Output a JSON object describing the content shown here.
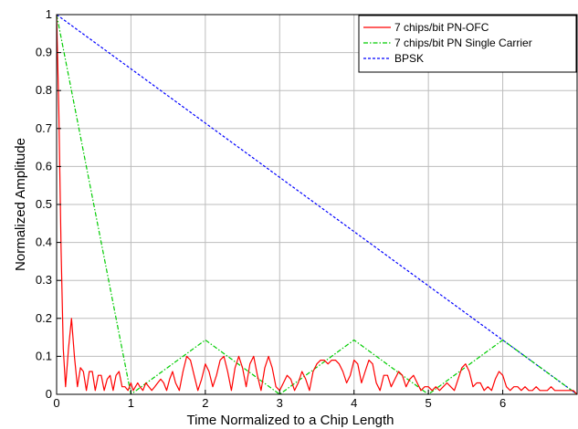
{
  "chart_data": {
    "type": "line",
    "title": "",
    "xlabel": "Time Normalized to a Chip Length",
    "ylabel": "Normalized Amplitude",
    "xlim": [
      0,
      7
    ],
    "ylim": [
      0,
      1
    ],
    "xticks": [
      0,
      1,
      2,
      3,
      4,
      5,
      6
    ],
    "yticks": [
      0,
      0.1,
      0.2,
      0.3,
      0.4,
      0.5,
      0.6,
      0.7,
      0.8,
      0.9,
      1
    ],
    "xtick_labels": [
      "0",
      "1",
      "2",
      "3",
      "4",
      "5",
      "6"
    ],
    "ytick_labels": [
      "0",
      "0.1",
      "0.2",
      "0.3",
      "0.4",
      "0.5",
      "0.6",
      "0.7",
      "0.8",
      "0.9",
      "1"
    ],
    "grid": true,
    "legend_position": "top-right",
    "series": [
      {
        "name": "7 chips/bit PN-OFC",
        "color": "#ff0000",
        "style": "solid",
        "x": [
          0,
          0.03,
          0.06,
          0.09,
          0.12,
          0.16,
          0.2,
          0.24,
          0.28,
          0.32,
          0.36,
          0.4,
          0.44,
          0.48,
          0.52,
          0.56,
          0.6,
          0.64,
          0.68,
          0.72,
          0.76,
          0.8,
          0.84,
          0.88,
          0.92,
          0.96,
          1.0,
          1.03,
          1.06,
          1.09,
          1.12,
          1.16,
          1.2,
          1.24,
          1.28,
          1.32,
          1.36,
          1.4,
          1.44,
          1.48,
          1.52,
          1.56,
          1.6,
          1.65,
          1.7,
          1.75,
          1.8,
          1.85,
          1.9,
          1.95,
          2.0,
          2.05,
          2.1,
          2.15,
          2.2,
          2.25,
          2.3,
          2.35,
          2.4,
          2.45,
          2.5,
          2.55,
          2.6,
          2.65,
          2.7,
          2.75,
          2.8,
          2.85,
          2.9,
          2.95,
          3.0,
          3.05,
          3.1,
          3.15,
          3.2,
          3.25,
          3.3,
          3.35,
          3.4,
          3.45,
          3.5,
          3.55,
          3.6,
          3.65,
          3.7,
          3.75,
          3.8,
          3.85,
          3.9,
          3.95,
          4.0,
          4.05,
          4.1,
          4.15,
          4.2,
          4.25,
          4.3,
          4.35,
          4.4,
          4.45,
          4.5,
          4.55,
          4.6,
          4.65,
          4.7,
          4.75,
          4.8,
          4.85,
          4.9,
          4.95,
          5.0,
          5.05,
          5.1,
          5.15,
          5.2,
          5.25,
          5.3,
          5.35,
          5.4,
          5.45,
          5.5,
          5.55,
          5.6,
          5.65,
          5.7,
          5.75,
          5.8,
          5.85,
          5.9,
          5.95,
          6.0,
          6.05,
          6.1,
          6.15,
          6.2,
          6.25,
          6.3,
          6.35,
          6.4,
          6.45,
          6.5,
          6.55,
          6.6,
          6.65,
          6.7,
          6.75,
          6.8,
          6.85,
          6.9,
          6.95,
          7.0
        ],
        "y": [
          1.0,
          0.75,
          0.38,
          0.12,
          0.02,
          0.12,
          0.2,
          0.1,
          0.02,
          0.07,
          0.06,
          0.01,
          0.06,
          0.06,
          0.01,
          0.05,
          0.05,
          0.01,
          0.04,
          0.05,
          0.01,
          0.05,
          0.06,
          0.02,
          0.02,
          0.01,
          0.03,
          0.01,
          0.02,
          0.03,
          0.02,
          0.01,
          0.03,
          0.02,
          0.01,
          0.02,
          0.03,
          0.04,
          0.03,
          0.01,
          0.04,
          0.06,
          0.03,
          0.01,
          0.06,
          0.1,
          0.09,
          0.05,
          0.01,
          0.04,
          0.08,
          0.06,
          0.02,
          0.05,
          0.09,
          0.1,
          0.06,
          0.01,
          0.07,
          0.1,
          0.07,
          0.02,
          0.08,
          0.1,
          0.05,
          0.01,
          0.07,
          0.1,
          0.07,
          0.02,
          0.01,
          0.03,
          0.05,
          0.04,
          0.01,
          0.03,
          0.06,
          0.04,
          0.01,
          0.06,
          0.08,
          0.09,
          0.09,
          0.08,
          0.09,
          0.09,
          0.08,
          0.06,
          0.03,
          0.05,
          0.09,
          0.08,
          0.03,
          0.06,
          0.09,
          0.08,
          0.03,
          0.01,
          0.05,
          0.05,
          0.02,
          0.04,
          0.06,
          0.05,
          0.02,
          0.04,
          0.05,
          0.03,
          0.01,
          0.02,
          0.02,
          0.01,
          0.02,
          0.01,
          0.02,
          0.03,
          0.02,
          0.01,
          0.04,
          0.07,
          0.08,
          0.06,
          0.02,
          0.03,
          0.03,
          0.01,
          0.02,
          0.01,
          0.04,
          0.06,
          0.05,
          0.02,
          0.01,
          0.02,
          0.02,
          0.01,
          0.02,
          0.01,
          0.01,
          0.02,
          0.01,
          0.01,
          0.01,
          0.02,
          0.01,
          0.01,
          0.01,
          0.01,
          0.01,
          0.01,
          0.0
        ]
      },
      {
        "name": "7 chips/bit PN Single Carrier",
        "color": "#00cc00",
        "style": "dashdot",
        "x": [
          0,
          1,
          2,
          3,
          4,
          5,
          6,
          7
        ],
        "y": [
          1.0,
          0.0,
          0.143,
          0.0,
          0.143,
          0.0,
          0.143,
          0.0
        ]
      },
      {
        "name": "BPSK",
        "color": "#0000ff",
        "style": "dashed",
        "x": [
          0,
          7
        ],
        "y": [
          1.0,
          0.0
        ]
      }
    ]
  }
}
